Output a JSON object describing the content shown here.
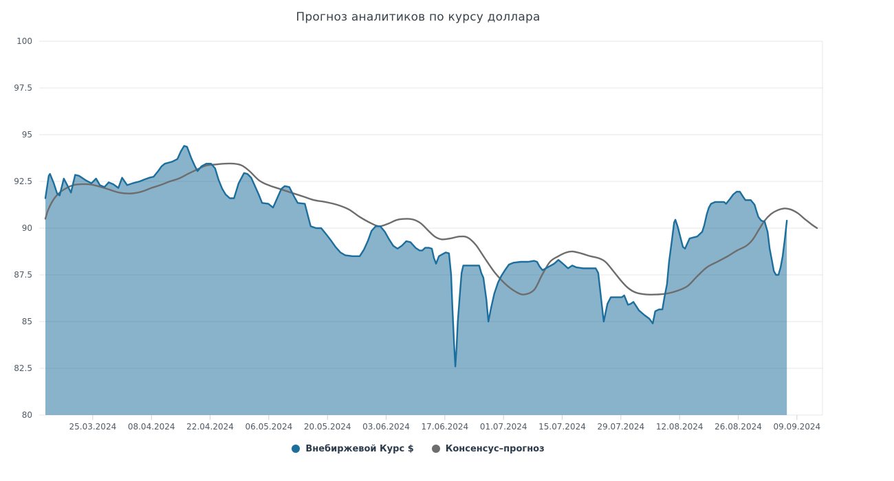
{
  "title": "Прогноз аналитиков по курсу доллара",
  "legend": {
    "items": [
      {
        "label": "Внебиржевой Курс $",
        "color": "#1c6e9c"
      },
      {
        "label": "Консенсус–прогноз",
        "color": "#6d6d6d"
      }
    ]
  },
  "colors": {
    "otc_line": "#1c6e9c",
    "otc_fill": "rgba(28,110,156,0.52)",
    "consensus_line": "#6d6d6d",
    "grid": "#e7e7e7",
    "tick": "#ccd1d9",
    "axis_label": "#4f5b66"
  },
  "chart_data": {
    "type": "area",
    "title": "Прогноз аналитиков по курсу доллара",
    "x_unit": "days (offset from first plotted point, ~13.03.2024)",
    "x_axis": {
      "tick_labels": [
        "25.03.2024",
        "08.04.2024",
        "22.04.2024",
        "06.05.2024",
        "20.05.2024",
        "03.06.2024",
        "17.06.2024",
        "01.07.2024",
        "15.07.2024",
        "29.07.2024",
        "12.08.2024",
        "26.08.2024",
        "09.09.2024"
      ],
      "first_tick_day": 11.3,
      "tick_interval_days": 14,
      "total_days": 184.4
    },
    "y_axis": {
      "min": 80,
      "max": 100,
      "tick_step": 2.5,
      "tick_labels": [
        "80",
        "82.5",
        "85",
        "87.5",
        "90",
        "92.5",
        "95",
        "97.5",
        "100"
      ]
    },
    "grid": true,
    "legend_position": "bottom",
    "series": [
      {
        "name": "Внебиржевой Курс $",
        "type": "area",
        "color": "#1c6e9c",
        "fill_color": "rgba(28,110,156,0.52)",
        "points": [
          [
            0,
            91.6
          ],
          [
            0.8,
            92.8
          ],
          [
            1.1,
            92.9
          ],
          [
            2,
            92.4
          ],
          [
            2.8,
            91.85
          ],
          [
            3.4,
            91.75
          ],
          [
            4.4,
            92.65
          ],
          [
            5.1,
            92.35
          ],
          [
            6.1,
            91.9
          ],
          [
            7.1,
            92.85
          ],
          [
            8,
            92.8
          ],
          [
            9.7,
            92.55
          ],
          [
            11,
            92.4
          ],
          [
            12.1,
            92.65
          ],
          [
            13,
            92.3
          ],
          [
            14.1,
            92.2
          ],
          [
            15.1,
            92.45
          ],
          [
            16.2,
            92.35
          ],
          [
            17.4,
            92.15
          ],
          [
            18.3,
            92.7
          ],
          [
            19.5,
            92.3
          ],
          [
            20.8,
            92.4
          ],
          [
            22.5,
            92.5
          ],
          [
            23.6,
            92.6
          ],
          [
            24.8,
            92.7
          ],
          [
            25.8,
            92.75
          ],
          [
            26.9,
            93.05
          ],
          [
            27.7,
            93.3
          ],
          [
            28.5,
            93.45
          ],
          [
            30.2,
            93.55
          ],
          [
            31.5,
            93.7
          ],
          [
            32.3,
            94.1
          ],
          [
            33.1,
            94.4
          ],
          [
            33.8,
            94.35
          ],
          [
            34.8,
            93.75
          ],
          [
            35.6,
            93.35
          ],
          [
            36.3,
            93.05
          ],
          [
            37.2,
            93.3
          ],
          [
            38.4,
            93.45
          ],
          [
            39.5,
            93.45
          ],
          [
            40.5,
            93.2
          ],
          [
            41.3,
            92.6
          ],
          [
            42.2,
            92.1
          ],
          [
            43,
            91.8
          ],
          [
            44,
            91.6
          ],
          [
            45,
            91.6
          ],
          [
            46.1,
            92.4
          ],
          [
            47.4,
            92.95
          ],
          [
            48.2,
            92.9
          ],
          [
            49.1,
            92.7
          ],
          [
            49.9,
            92.3
          ],
          [
            50.9,
            91.8
          ],
          [
            51.7,
            91.35
          ],
          [
            53.2,
            91.3
          ],
          [
            54.3,
            91.1
          ],
          [
            55.5,
            91.7
          ],
          [
            56.3,
            92.1
          ],
          [
            57.1,
            92.25
          ],
          [
            58.2,
            92.2
          ],
          [
            59.2,
            91.75
          ],
          [
            60.2,
            91.35
          ],
          [
            61.9,
            91.3
          ],
          [
            62.7,
            90.6
          ],
          [
            63.3,
            90.1
          ],
          [
            64.6,
            90
          ],
          [
            65.8,
            90
          ],
          [
            66.9,
            89.7
          ],
          [
            68.1,
            89.35
          ],
          [
            69.2,
            89
          ],
          [
            70.4,
            88.7
          ],
          [
            71.5,
            88.55
          ],
          [
            73.2,
            88.5
          ],
          [
            75,
            88.5
          ],
          [
            76,
            88.85
          ],
          [
            77,
            89.35
          ],
          [
            77.8,
            89.85
          ],
          [
            78.8,
            90.1
          ],
          [
            79.9,
            90.1
          ],
          [
            81,
            89.8
          ],
          [
            82,
            89.4
          ],
          [
            83,
            89.05
          ],
          [
            84,
            88.9
          ],
          [
            85,
            89.05
          ],
          [
            86.1,
            89.3
          ],
          [
            87.1,
            89.25
          ],
          [
            88.3,
            88.95
          ],
          [
            89.3,
            88.8
          ],
          [
            89.9,
            88.8
          ],
          [
            90.6,
            88.95
          ],
          [
            91.5,
            88.95
          ],
          [
            92.2,
            88.9
          ],
          [
            92.7,
            88.4
          ],
          [
            93.2,
            88.1
          ],
          [
            93.9,
            88.5
          ],
          [
            94.7,
            88.6
          ],
          [
            95.5,
            88.7
          ],
          [
            96.3,
            88.65
          ],
          [
            96.8,
            87.5
          ],
          [
            97.1,
            85.8
          ],
          [
            97.5,
            83.8
          ],
          [
            97.8,
            82.6
          ],
          [
            98.1,
            83.6
          ],
          [
            98.4,
            85
          ],
          [
            98.9,
            86.5
          ],
          [
            99.3,
            87.6
          ],
          [
            99.7,
            88
          ],
          [
            101.6,
            88
          ],
          [
            103.5,
            88
          ],
          [
            104,
            87.6
          ],
          [
            104.5,
            87.35
          ],
          [
            105.2,
            86.2
          ],
          [
            105.7,
            85
          ],
          [
            106.3,
            85.7
          ],
          [
            107.1,
            86.5
          ],
          [
            108,
            87.1
          ],
          [
            108.8,
            87.45
          ],
          [
            109.8,
            87.8
          ],
          [
            110.6,
            88.05
          ],
          [
            111.7,
            88.15
          ],
          [
            113.4,
            88.2
          ],
          [
            115.2,
            88.2
          ],
          [
            116.6,
            88.25
          ],
          [
            117.3,
            88.2
          ],
          [
            117.9,
            87.95
          ],
          [
            118.6,
            87.75
          ],
          [
            119.4,
            87.85
          ],
          [
            120.6,
            88
          ],
          [
            121.4,
            88.1
          ],
          [
            122.4,
            88.3
          ],
          [
            123.7,
            88.05
          ],
          [
            124.7,
            87.85
          ],
          [
            125.7,
            88
          ],
          [
            126.7,
            87.9
          ],
          [
            128.3,
            87.85
          ],
          [
            131.3,
            87.85
          ],
          [
            131.9,
            87.6
          ],
          [
            132.6,
            86.2
          ],
          [
            133.2,
            85
          ],
          [
            134.1,
            85.95
          ],
          [
            134.9,
            86.3
          ],
          [
            136.2,
            86.3
          ],
          [
            137.5,
            86.3
          ],
          [
            138.1,
            86.4
          ],
          [
            139,
            85.9
          ],
          [
            139.6,
            85.95
          ],
          [
            140.3,
            86.05
          ],
          [
            141.6,
            85.6
          ],
          [
            142.9,
            85.35
          ],
          [
            144.1,
            85.15
          ],
          [
            144.9,
            84.9
          ],
          [
            145.5,
            85.55
          ],
          [
            146.4,
            85.65
          ],
          [
            147.2,
            85.65
          ],
          [
            147.7,
            86.3
          ],
          [
            148.3,
            87
          ],
          [
            148.8,
            88.2
          ],
          [
            149.5,
            89.4
          ],
          [
            150,
            90.3
          ],
          [
            150.3,
            90.45
          ],
          [
            150.9,
            90.05
          ],
          [
            151.4,
            89.6
          ],
          [
            152.1,
            89
          ],
          [
            152.6,
            88.9
          ],
          [
            153.1,
            89.15
          ],
          [
            153.7,
            89.45
          ],
          [
            154.6,
            89.5
          ],
          [
            155.5,
            89.55
          ],
          [
            156.2,
            89.7
          ],
          [
            156.7,
            89.8
          ],
          [
            157.2,
            90.15
          ],
          [
            157.8,
            90.75
          ],
          [
            158.3,
            91.1
          ],
          [
            158.8,
            91.3
          ],
          [
            159.8,
            91.4
          ],
          [
            161.1,
            91.4
          ],
          [
            161.9,
            91.4
          ],
          [
            162.4,
            91.3
          ],
          [
            163.3,
            91.55
          ],
          [
            164.1,
            91.8
          ],
          [
            164.9,
            91.95
          ],
          [
            165.7,
            91.95
          ],
          [
            166.4,
            91.7
          ],
          [
            167,
            91.5
          ],
          [
            168.3,
            91.5
          ],
          [
            169.2,
            91.25
          ],
          [
            169.6,
            90.95
          ],
          [
            170.1,
            90.6
          ],
          [
            170.8,
            90.4
          ],
          [
            171.6,
            90.35
          ],
          [
            172.3,
            89.8
          ],
          [
            172.8,
            88.9
          ],
          [
            173.3,
            88.3
          ],
          [
            173.8,
            87.7
          ],
          [
            174.3,
            87.5
          ],
          [
            174.9,
            87.5
          ],
          [
            175.4,
            87.9
          ],
          [
            175.9,
            88.5
          ],
          [
            176.4,
            89.4
          ],
          [
            176.9,
            90.4
          ]
        ]
      },
      {
        "name": "Консенсус–прогноз",
        "type": "line",
        "color": "#6d6d6d",
        "points": [
          [
            0,
            90.5
          ],
          [
            0.7,
            91
          ],
          [
            2,
            91.55
          ],
          [
            3.4,
            91.9
          ],
          [
            5.1,
            92.15
          ],
          [
            6.7,
            92.3
          ],
          [
            8.4,
            92.35
          ],
          [
            10,
            92.35
          ],
          [
            11.6,
            92.3
          ],
          [
            13.3,
            92.2
          ],
          [
            15.4,
            92.05
          ],
          [
            17.6,
            91.9
          ],
          [
            19.9,
            91.85
          ],
          [
            22,
            91.9
          ],
          [
            23.6,
            92
          ],
          [
            25.3,
            92.15
          ],
          [
            27.4,
            92.3
          ],
          [
            29.7,
            92.5
          ],
          [
            31.8,
            92.65
          ],
          [
            34,
            92.9
          ],
          [
            36.3,
            93.15
          ],
          [
            38.4,
            93.35
          ],
          [
            40.4,
            93.4
          ],
          [
            42.7,
            93.45
          ],
          [
            45,
            93.45
          ],
          [
            46.9,
            93.35
          ],
          [
            48.7,
            93.05
          ],
          [
            51,
            92.55
          ],
          [
            53.2,
            92.3
          ],
          [
            55.9,
            92.1
          ],
          [
            58.6,
            91.9
          ],
          [
            61.4,
            91.7
          ],
          [
            64.1,
            91.5
          ],
          [
            66.8,
            91.4
          ],
          [
            69.6,
            91.25
          ],
          [
            72.4,
            91
          ],
          [
            75,
            90.6
          ],
          [
            77.8,
            90.25
          ],
          [
            79.7,
            90.1
          ],
          [
            81.9,
            90.25
          ],
          [
            84,
            90.45
          ],
          [
            86.3,
            90.5
          ],
          [
            87.9,
            90.45
          ],
          [
            89.6,
            90.25
          ],
          [
            91.2,
            89.9
          ],
          [
            92.9,
            89.55
          ],
          [
            94.5,
            89.4
          ],
          [
            96.6,
            89.45
          ],
          [
            98.8,
            89.55
          ],
          [
            100.7,
            89.5
          ],
          [
            102.7,
            89.1
          ],
          [
            104.8,
            88.4
          ],
          [
            107.3,
            87.6
          ],
          [
            109.8,
            87
          ],
          [
            112.2,
            86.6
          ],
          [
            114.2,
            86.45
          ],
          [
            116.6,
            86.7
          ],
          [
            118.5,
            87.5
          ],
          [
            120.4,
            88.2
          ],
          [
            122.4,
            88.5
          ],
          [
            124.3,
            88.7
          ],
          [
            125.8,
            88.75
          ],
          [
            127.8,
            88.65
          ],
          [
            130,
            88.5
          ],
          [
            131.9,
            88.4
          ],
          [
            133.6,
            88.2
          ],
          [
            135.5,
            87.7
          ],
          [
            137.3,
            87.2
          ],
          [
            139,
            86.8
          ],
          [
            140.9,
            86.55
          ],
          [
            143.4,
            86.45
          ],
          [
            145.9,
            86.45
          ],
          [
            148.3,
            86.5
          ],
          [
            150.8,
            86.65
          ],
          [
            153.2,
            86.9
          ],
          [
            155.4,
            87.4
          ],
          [
            157.8,
            87.9
          ],
          [
            160.3,
            88.2
          ],
          [
            162.8,
            88.5
          ],
          [
            165,
            88.8
          ],
          [
            167.2,
            89.05
          ],
          [
            168.8,
            89.4
          ],
          [
            170.3,
            89.95
          ],
          [
            171.6,
            90.4
          ],
          [
            173.1,
            90.75
          ],
          [
            174.6,
            90.95
          ],
          [
            176.2,
            91.05
          ],
          [
            177.8,
            91
          ],
          [
            179.5,
            90.8
          ],
          [
            181.1,
            90.5
          ],
          [
            182.8,
            90.2
          ],
          [
            184.1,
            90
          ]
        ]
      }
    ]
  }
}
